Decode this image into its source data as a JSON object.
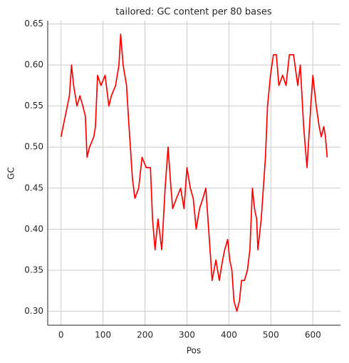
{
  "chart_data": {
    "type": "line",
    "title": "tailored: GC content per 80 bases",
    "x_label": "Pos",
    "y_label": "GC",
    "x": [
      0,
      5,
      10,
      15,
      20,
      25,
      30,
      38,
      45,
      52,
      58,
      62,
      68,
      78,
      82,
      87,
      95,
      105,
      114,
      120,
      130,
      138,
      142,
      148,
      156,
      162,
      170,
      176,
      185,
      193,
      203,
      213,
      218,
      224,
      231,
      240,
      248,
      255,
      262,
      266,
      275,
      285,
      293,
      300,
      308,
      315,
      322,
      330,
      338,
      345,
      350,
      355,
      360,
      369,
      377,
      385,
      390,
      397,
      402,
      407,
      412,
      419,
      425,
      430,
      437,
      444,
      450,
      456,
      461,
      466,
      469,
      477,
      482,
      487,
      492,
      499,
      506,
      513,
      519,
      528,
      536,
      544,
      554,
      564,
      570,
      578,
      586,
      595,
      600,
      608,
      615,
      620,
      626,
      630,
      634
    ],
    "values": [
      0.5125,
      0.525,
      0.5375,
      0.55,
      0.5625,
      0.6,
      0.575,
      0.55,
      0.5625,
      0.55,
      0.5375,
      0.4875,
      0.5,
      0.5125,
      0.525,
      0.5875,
      0.575,
      0.5875,
      0.55,
      0.5625,
      0.575,
      0.6,
      0.6375,
      0.6,
      0.575,
      0.525,
      0.4625,
      0.4375,
      0.45,
      0.4875,
      0.475,
      0.475,
      0.4125,
      0.375,
      0.4125,
      0.375,
      0.45,
      0.5,
      0.45,
      0.425,
      0.4375,
      0.45,
      0.425,
      0.475,
      0.45,
      0.4375,
      0.4,
      0.425,
      0.4375,
      0.45,
      0.4125,
      0.375,
      0.3375,
      0.3625,
      0.3375,
      0.3625,
      0.375,
      0.3875,
      0.3625,
      0.35,
      0.3125,
      0.3,
      0.3125,
      0.3375,
      0.3375,
      0.35,
      0.375,
      0.45,
      0.425,
      0.4125,
      0.375,
      0.4125,
      0.45,
      0.4875,
      0.55,
      0.5875,
      0.6125,
      0.6125,
      0.575,
      0.5875,
      0.575,
      0.6125,
      0.6125,
      0.575,
      0.6,
      0.525,
      0.475,
      0.55,
      0.5875,
      0.55,
      0.525,
      0.5125,
      0.525,
      0.5125,
      0.4875
    ],
    "color": "#ff0000",
    "xlim": [
      -31.7,
      665.7
    ],
    "ylim": [
      0.283,
      0.654
    ],
    "xticks": [
      0,
      100,
      200,
      300,
      400,
      500,
      600
    ],
    "yticks": [
      {
        "value": 0.3,
        "label": "0.30"
      },
      0.35,
      {
        "value": 0.4,
        "label": "0.40"
      },
      0.45,
      {
        "value": 0.5,
        "label": "0.50"
      },
      0.55,
      {
        "value": 0.6,
        "label": "0.60"
      },
      0.65
    ],
    "grid": true
  }
}
